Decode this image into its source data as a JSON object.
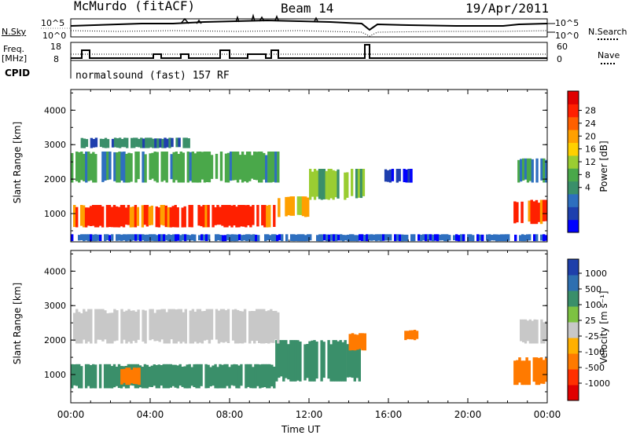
{
  "header": {
    "station": "McMurdo (fitACF)",
    "beam": "Beam 14",
    "date": "19/Apr/2011"
  },
  "strip1": {
    "left_label": "N.Sky",
    "right_label": "N.Search",
    "ticks_left": [
      "10^5",
      "10^0"
    ],
    "ticks_right": [
      "10^5",
      "10^0"
    ]
  },
  "strip2": {
    "left_label_line1": "Freq.",
    "left_label_line2": "[MHz]",
    "right_label": "Nave",
    "ticks_left": [
      "18",
      "8"
    ],
    "ticks_right": [
      "60",
      "0"
    ]
  },
  "cpid": {
    "label": "CPID",
    "text": "normalsound (fast) 157 RF"
  },
  "x_axis": {
    "title": "Time UT",
    "ticks": [
      "00:00",
      "04:00",
      "08:00",
      "12:00",
      "16:00",
      "20:00",
      "00:00"
    ]
  },
  "y_axis": {
    "title": "Slant Range [km]",
    "ticks": [
      "4000",
      "3000",
      "2000",
      "1000"
    ]
  },
  "colorbars": {
    "power": {
      "title": "Power [dB]",
      "labels": [
        "28",
        "24",
        "20",
        "16",
        "12",
        "8",
        "4"
      ],
      "colors": [
        "#0000ff",
        "#1e3fae",
        "#2e6fbf",
        "#3a8f6a",
        "#4aa84a",
        "#9acd32",
        "#ffd000",
        "#ffa000",
        "#ff6000",
        "#ff2000",
        "#e00000"
      ]
    },
    "velocity": {
      "title": "Velocity [m s⁻¹]",
      "labels": [
        "1000",
        "500",
        "100",
        "25",
        "-25",
        "-100",
        "-500",
        "-1000"
      ],
      "colors": [
        "#1e3faa",
        "#2e6fb0",
        "#3a8f6a",
        "#7dc242",
        "#c8c8c8",
        "#ffb000",
        "#ff7a00",
        "#ff3000",
        "#e00000"
      ]
    }
  },
  "chart_data": [
    {
      "type": "heatmap",
      "title": "Power [dB]",
      "xlabel": "Time UT",
      "ylabel": "Slant Range [km]",
      "xlim": [
        0,
        24
      ],
      "ylim": [
        180,
        4600
      ],
      "features": [
        {
          "t": [
            0.0,
            10.3
          ],
          "r": [
            600,
            1250
          ],
          "value": 30
        },
        {
          "t": [
            10.3,
            12.0
          ],
          "r": [
            900,
            1500
          ],
          "value": 24
        },
        {
          "t": [
            12.0,
            14.8
          ],
          "r": [
            1400,
            2300
          ],
          "value": 16
        },
        {
          "t": [
            0.0,
            10.5
          ],
          "r": [
            1900,
            2800
          ],
          "value": 14
        },
        {
          "t": [
            0.5,
            6.0
          ],
          "r": [
            2900,
            3200
          ],
          "value": 12
        },
        {
          "t": [
            15.8,
            17.2
          ],
          "r": [
            1900,
            2300
          ],
          "value": 6
        },
        {
          "t": [
            22.3,
            24.0
          ],
          "r": [
            700,
            1400
          ],
          "value": 28
        },
        {
          "t": [
            22.5,
            24.0
          ],
          "r": [
            1900,
            2600
          ],
          "value": 14
        },
        {
          "t": [
            0.0,
            24.0
          ],
          "r": [
            200,
            400
          ],
          "value": 8
        }
      ]
    },
    {
      "type": "heatmap",
      "title": "Velocity [m s⁻¹]",
      "xlabel": "Time UT",
      "ylabel": "Slant Range [km]",
      "xlim": [
        0,
        24
      ],
      "ylim": [
        180,
        4600
      ],
      "features": [
        {
          "t": [
            0.0,
            10.3
          ],
          "r": [
            600,
            1300
          ],
          "value": 100
        },
        {
          "t": [
            2.5,
            3.5
          ],
          "r": [
            700,
            1200
          ],
          "value": -300
        },
        {
          "t": [
            10.3,
            14.6
          ],
          "r": [
            800,
            2000
          ],
          "value": 100
        },
        {
          "t": [
            0.0,
            10.5
          ],
          "r": [
            1900,
            2900
          ],
          "value": 0
        },
        {
          "t": [
            14.0,
            15.0
          ],
          "r": [
            1700,
            2200
          ],
          "value": -400
        },
        {
          "t": [
            16.8,
            17.5
          ],
          "r": [
            2000,
            2300
          ],
          "value": -300
        },
        {
          "t": [
            22.3,
            24.0
          ],
          "r": [
            700,
            1500
          ],
          "value": -300
        },
        {
          "t": [
            22.5,
            24.0
          ],
          "r": [
            1900,
            2600
          ],
          "value": 0
        }
      ]
    }
  ]
}
